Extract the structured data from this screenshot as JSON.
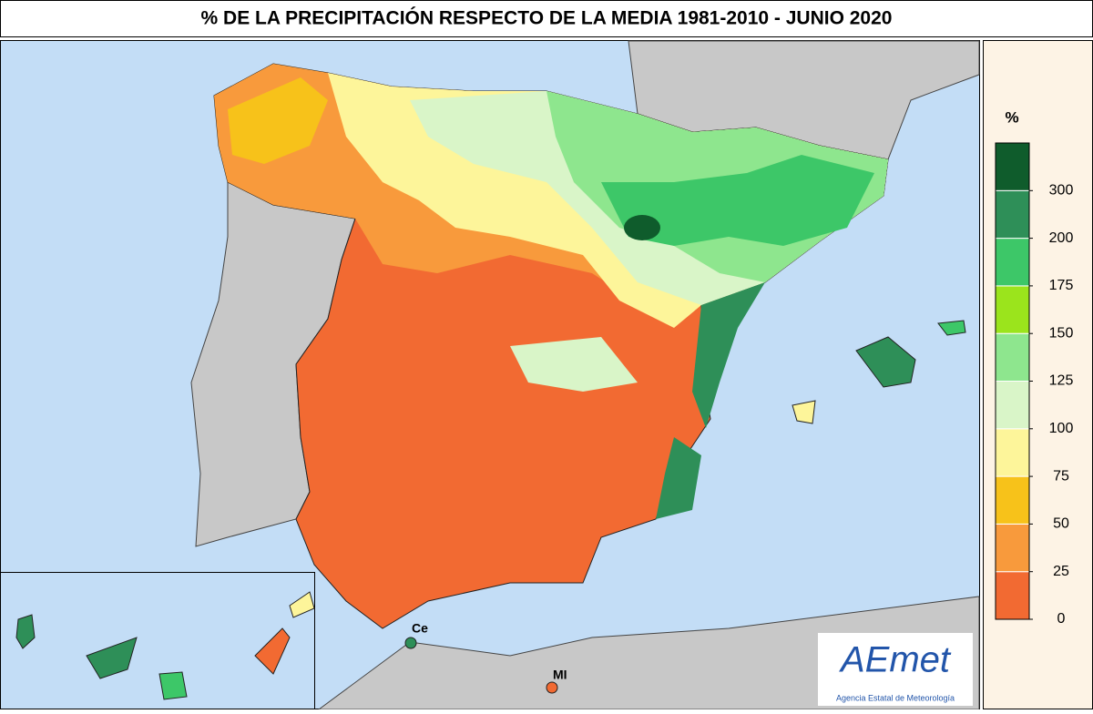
{
  "title": "% DE LA PRECIPITACIÓN RESPECTO DE LA MEDIA 1981-2010 - JUNIO 2020",
  "legend": {
    "unit": "%",
    "ticks": [
      0,
      25,
      50,
      75,
      100,
      125,
      150,
      175,
      200,
      300
    ],
    "colors": [
      "#f26a32",
      "#f89a3c",
      "#f7c21a",
      "#fdf59a",
      "#d9f5c8",
      "#8ee68e",
      "#9be41c",
      "#3dc768",
      "#2e8f58",
      "#0f5c2c"
    ]
  },
  "places": [
    {
      "label": "Ce"
    },
    {
      "label": "MI"
    }
  ],
  "logo": {
    "text": "AEmet",
    "subtitle": "Agencia Estatal de Meteorología"
  }
}
